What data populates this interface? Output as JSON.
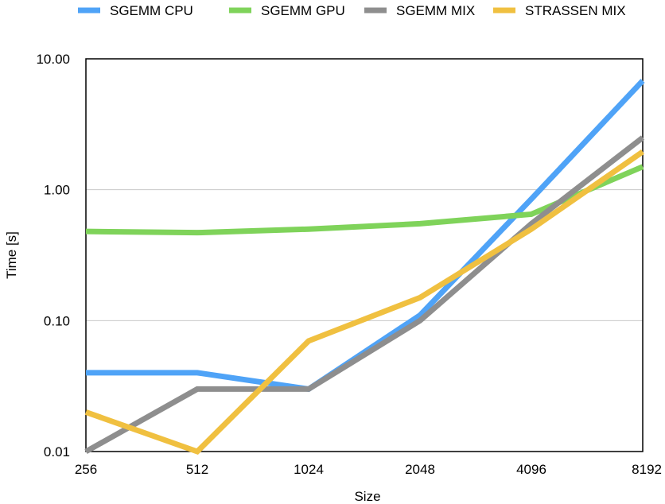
{
  "chart_data": {
    "type": "line",
    "title": "",
    "xlabel": "Size",
    "ylabel": "Time [s]",
    "categories": [
      "256",
      "512",
      "1024",
      "2048",
      "4096",
      "8192"
    ],
    "yscale": "log",
    "ylim": [
      0.01,
      10
    ],
    "yticks": [
      "0.01",
      "0.10",
      "1.00",
      "10.00"
    ],
    "ytick_values": [
      0.01,
      0.1,
      1,
      10
    ],
    "grid": true,
    "legend_position": "top",
    "series": [
      {
        "name": "SGEMM CPU",
        "color": "#4fa3f7",
        "values": [
          0.04,
          0.04,
          0.03,
          0.11,
          0.85,
          6.8
        ]
      },
      {
        "name": "SGEMM GPU",
        "color": "#7fd35a",
        "values": [
          0.48,
          0.47,
          0.5,
          0.55,
          0.65,
          1.5
        ]
      },
      {
        "name": "SGEMM MIX",
        "color": "#8e8e8e",
        "values": [
          0.01,
          0.03,
          0.03,
          0.1,
          0.55,
          2.5
        ]
      },
      {
        "name": "STRASSEN MIX",
        "color": "#f0c040",
        "values": [
          0.02,
          0.01,
          0.07,
          0.15,
          0.5,
          1.95
        ]
      }
    ]
  }
}
